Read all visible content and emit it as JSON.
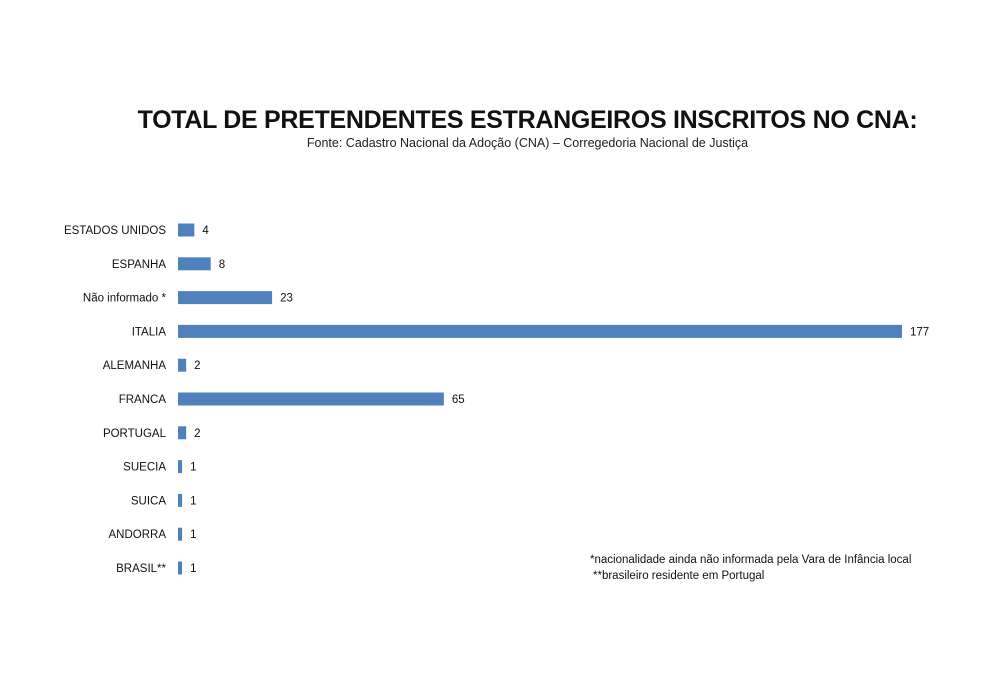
{
  "chart_data": {
    "type": "bar",
    "orientation": "horizontal",
    "title": "TOTAL DE PRETENDENTES ESTRANGEIROS INSCRITOS NO CNA:",
    "subtitle": "Fonte: Cadastro Nacional da Adoção (CNA) – Corregedoria Nacional de Justiça",
    "categories": [
      "ESTADOS UNIDOS",
      "ESPANHA",
      "Não informado *",
      "ITALIA",
      "ALEMANHA",
      "FRANCA",
      "PORTUGAL",
      "SUECIA",
      "SUICA",
      "ANDORRA",
      "BRASIL**"
    ],
    "values": [
      4,
      8,
      23,
      177,
      2,
      65,
      2,
      1,
      1,
      1,
      1
    ],
    "xlim": [
      0,
      177
    ],
    "grid": false,
    "bar_color": "#4f81bd",
    "data_labels": true
  },
  "notes": [
    "*nacionalidade ainda não informada pela Vara de Infância local",
    "**brasileiro residente em Portugal"
  ]
}
